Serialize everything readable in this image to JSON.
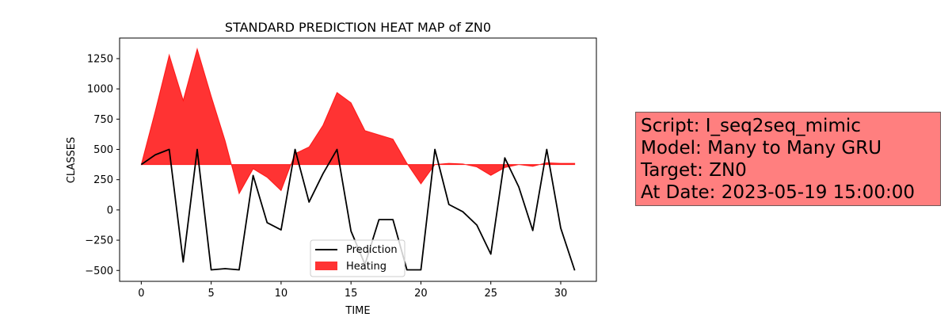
{
  "chart_data": {
    "type": "line",
    "title": "STANDARD PREDICTION HEAT MAP of ZN0",
    "xlabel": "TIME",
    "ylabel": "CLASSES",
    "xlim": [
      -1.55,
      32.55
    ],
    "ylim": [
      -590,
      1420
    ],
    "xticks": [
      0,
      5,
      10,
      15,
      20,
      25,
      30
    ],
    "yticks": [
      -500,
      -250,
      0,
      250,
      500,
      750,
      1000,
      1250
    ],
    "legend_position": "lower center",
    "series": [
      {
        "name": "Prediction",
        "style": "line",
        "color": "#000000",
        "x": [
          0,
          1,
          2,
          3,
          4,
          5,
          6,
          7,
          8,
          9,
          10,
          11,
          12,
          13,
          14,
          15,
          16,
          17,
          18,
          19,
          20,
          21,
          22,
          23,
          24,
          25,
          26,
          27,
          28,
          29,
          30,
          31
        ],
        "y": [
          375,
          455,
          500,
          -430,
          500,
          -495,
          -485,
          -495,
          285,
          -105,
          -165,
          500,
          65,
          300,
          500,
          -175,
          -450,
          -80,
          -80,
          -495,
          -495,
          500,
          45,
          -15,
          -125,
          -365,
          430,
          190,
          -170,
          500,
          -150,
          -500
        ]
      },
      {
        "name": "Heating",
        "style": "fill_between",
        "color": "#ff0000",
        "alpha": 0.8,
        "baseline": 375,
        "x": [
          0,
          1,
          2,
          3,
          4,
          5,
          6,
          7,
          8,
          9,
          10,
          11,
          12,
          13,
          14,
          15,
          16,
          17,
          18,
          19,
          20,
          21,
          22,
          23,
          24,
          25,
          26,
          27,
          28,
          29,
          30,
          31
        ],
        "y": [
          375,
          815,
          1280,
          905,
          1330,
          940,
          570,
          135,
          340,
          270,
          160,
          465,
          520,
          700,
          970,
          885,
          655,
          620,
          585,
          385,
          215,
          375,
          385,
          380,
          355,
          285,
          350,
          375,
          360,
          390,
          385,
          385
        ]
      }
    ]
  },
  "info_box": {
    "script": "Script: I_seq2seq_mimic",
    "model": "Model: Many to Many GRU",
    "target": "Target: ZN0",
    "date": "At Date: 2023-05-19 15:00:00"
  }
}
